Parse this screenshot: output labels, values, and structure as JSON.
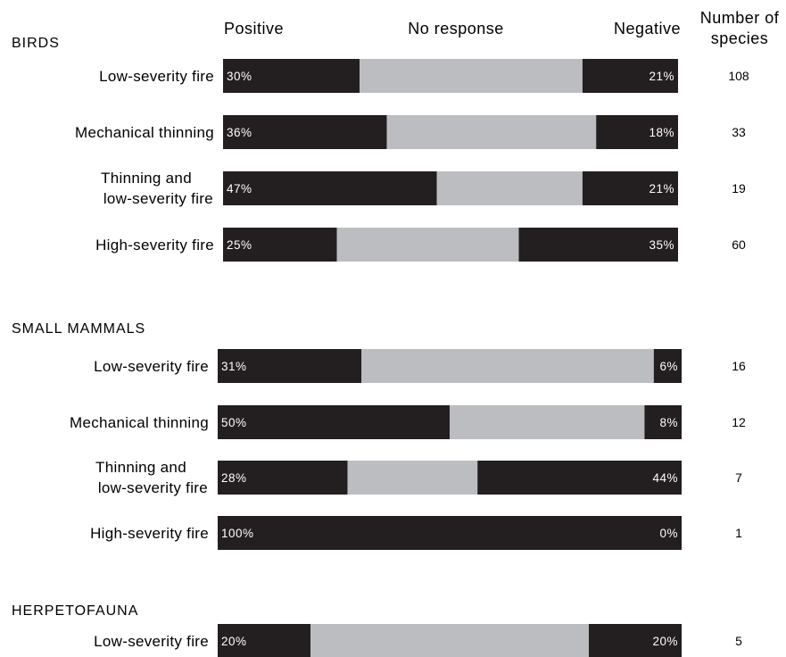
{
  "chart_data": {
    "type": "bar",
    "stacked": true,
    "orientation": "horizontal",
    "headers": {
      "positive": "Positive",
      "no_response": "No response",
      "negative": "Negative",
      "count_line1": "Number of",
      "count_line2": "species"
    },
    "colors": {
      "positive": "#231f20",
      "no_response": "#bcbdc0",
      "negative": "#231f20"
    },
    "groups": [
      {
        "name": "BIRDS",
        "rows": [
          {
            "label": [
              "Low-severity fire"
            ],
            "positive": 30,
            "negative": 21,
            "positive_label": "30%",
            "negative_label": "21%",
            "count": "108"
          },
          {
            "label": [
              "Mechanical thinning"
            ],
            "positive": 36,
            "negative": 18,
            "positive_label": "36%",
            "negative_label": "18%",
            "count": "33"
          },
          {
            "label": [
              "Thinning and",
              "low-severity fire"
            ],
            "positive": 47,
            "negative": 21,
            "positive_label": "47%",
            "negative_label": "21%",
            "count": "19"
          },
          {
            "label": [
              "High-severity fire"
            ],
            "positive": 25,
            "negative": 35,
            "positive_label": "25%",
            "negative_label": "35%",
            "count": "60"
          }
        ]
      },
      {
        "name": "SMALL MAMMALS",
        "rows": [
          {
            "label": [
              "Low-severity fire"
            ],
            "positive": 31,
            "negative": 6,
            "positive_label": "31%",
            "negative_label": "6%",
            "count": "16"
          },
          {
            "label": [
              "Mechanical thinning"
            ],
            "positive": 50,
            "negative": 8,
            "positive_label": "50%",
            "negative_label": "8%",
            "count": "12"
          },
          {
            "label": [
              "Thinning and",
              "low-severity fire"
            ],
            "positive": 28,
            "negative": 44,
            "positive_label": "28%",
            "negative_label": "44%",
            "count": "7"
          },
          {
            "label": [
              "High-severity fire"
            ],
            "positive": 100,
            "negative": 0,
            "positive_label": "100%",
            "negative_label": "0%",
            "count": "1"
          }
        ]
      },
      {
        "name": "HERPETOFAUNA",
        "rows": [
          {
            "label": [
              "Low-severity fire"
            ],
            "positive": 20,
            "negative": 20,
            "positive_label": "20%",
            "negative_label": "20%",
            "count": "5"
          }
        ]
      }
    ]
  }
}
